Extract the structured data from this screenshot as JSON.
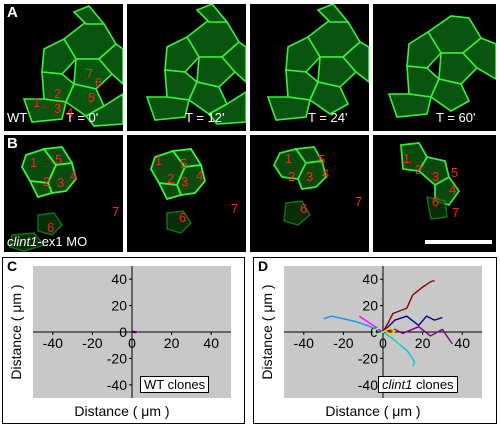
{
  "panels": {
    "A": {
      "letter": "A",
      "genotype": "WT",
      "times": [
        "T = 0'",
        "T = 12'",
        "T = 24'",
        "T = 60'"
      ],
      "cell_labels": [
        "1",
        "2",
        "3",
        "4",
        "5",
        "6",
        "7"
      ]
    },
    "B": {
      "letter": "B",
      "morpholino_gene": "clint1",
      "morpholino_suffix": "-ex1 MO",
      "cell_labels": [
        "1",
        "2",
        "3",
        "4",
        "5",
        "6",
        "7"
      ]
    },
    "C": {
      "letter": "C",
      "legend": "WT clones"
    },
    "D": {
      "letter": "D",
      "legend_gene": "clint1",
      "legend_suffix": " clones"
    }
  },
  "chart_data": [
    {
      "type": "line",
      "panel": "C",
      "title": "",
      "xlabel": "Distance ( μm )",
      "ylabel": "Distance ( μm )",
      "xticks": [
        "-40",
        "-20",
        "0",
        "20",
        "40"
      ],
      "yticks": [
        "40",
        "20",
        "0",
        "-20",
        "-40"
      ],
      "xlim": [
        -50,
        50
      ],
      "ylim": [
        -50,
        50
      ],
      "grid": false,
      "series": [
        {
          "color": "#ff00ff",
          "x": [
            0,
            1,
            2,
            3
          ],
          "y": [
            0,
            0.5,
            -0.5,
            0.3
          ]
        },
        {
          "color": "#8b0000",
          "x": [
            0,
            1.5,
            2.5
          ],
          "y": [
            0,
            -0.5,
            0.5
          ]
        },
        {
          "color": "#00008b",
          "x": [
            0,
            1,
            2
          ],
          "y": [
            0,
            0.4,
            0
          ]
        }
      ]
    },
    {
      "type": "line",
      "panel": "D",
      "title": "",
      "xlabel": "Distance ( μm )",
      "ylabel": "Distance ( μm )",
      "xticks": [
        "-40",
        "-20",
        "0",
        "20",
        "40"
      ],
      "yticks": [
        "40",
        "20",
        "0",
        "-20",
        "-40"
      ],
      "xlim": [
        -50,
        50
      ],
      "ylim": [
        -50,
        50
      ],
      "grid": false,
      "series": [
        {
          "color": "#8b0000",
          "x": [
            0,
            3,
            5,
            12,
            15,
            20,
            24,
            26
          ],
          "y": [
            0,
            8,
            14,
            18,
            28,
            34,
            38,
            39
          ]
        },
        {
          "color": "#00008b",
          "x": [
            0,
            6,
            12,
            18,
            22,
            26,
            30
          ],
          "y": [
            0,
            9,
            12,
            5,
            12,
            9,
            11
          ]
        },
        {
          "color": "#800080",
          "x": [
            0,
            6,
            10,
            18,
            24,
            30,
            35
          ],
          "y": [
            0,
            2,
            -1,
            4,
            -3,
            2,
            -9
          ]
        },
        {
          "color": "#1e90ff",
          "x": [
            0,
            -8,
            -14,
            -20,
            -26,
            -30
          ],
          "y": [
            0,
            5,
            8,
            10,
            12,
            10
          ]
        },
        {
          "color": "#00ced1",
          "x": [
            0,
            4,
            8,
            12,
            14,
            16,
            15
          ],
          "y": [
            0,
            -4,
            -9,
            -14,
            -18,
            -23,
            -26
          ]
        },
        {
          "color": "#ff00ff",
          "x": [
            0,
            -4,
            -8,
            -12
          ],
          "y": [
            0,
            4,
            8,
            12
          ]
        },
        {
          "color": "#ffd700",
          "x": [
            0,
            3,
            6,
            4,
            1
          ],
          "y": [
            0,
            3,
            1,
            -2,
            1
          ]
        },
        {
          "color": "#98fb98",
          "x": [
            0,
            -3,
            -5,
            -2
          ],
          "y": [
            0,
            -2,
            1,
            3
          ]
        }
      ]
    }
  ]
}
